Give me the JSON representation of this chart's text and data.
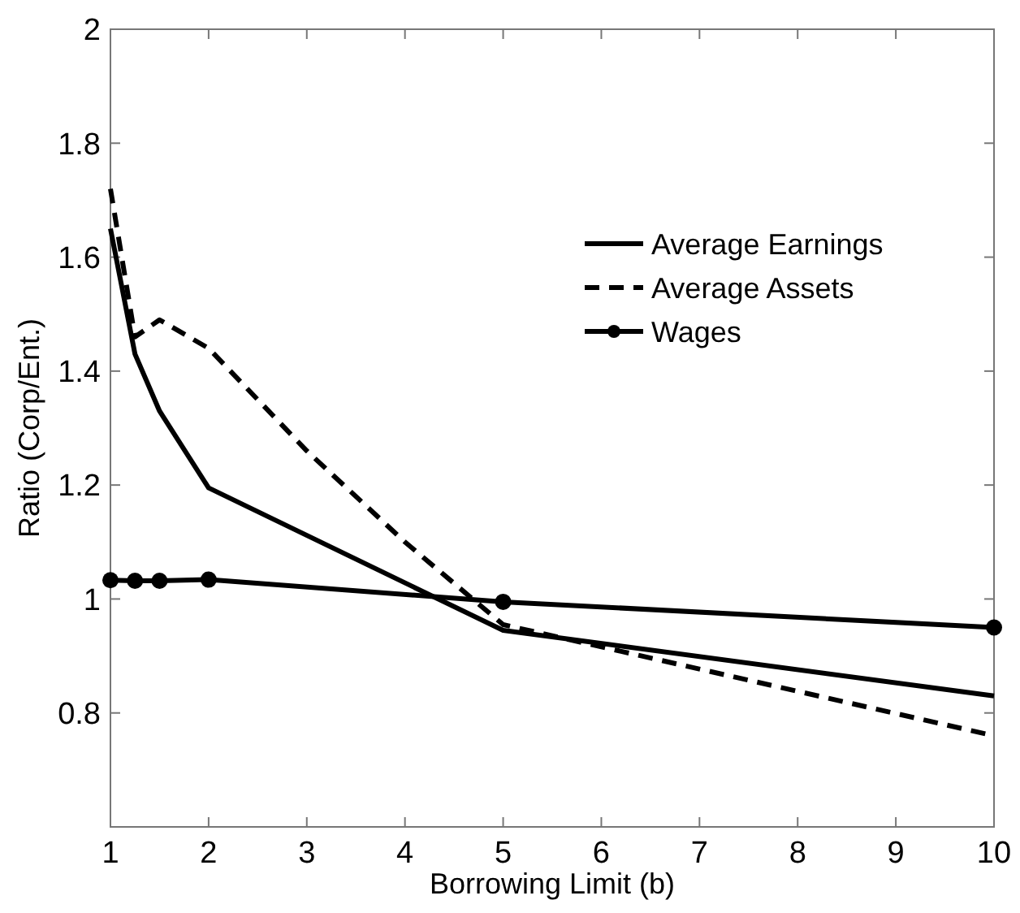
{
  "chart_data": {
    "type": "line",
    "xlabel": "Borrowing Limit (b)",
    "ylabel": "Ratio (Corp/Ent.)",
    "xlim": [
      1,
      10
    ],
    "xticks": [
      1,
      2,
      3,
      4,
      5,
      6,
      7,
      8,
      9,
      10
    ],
    "ylim": [
      0.6,
      2
    ],
    "yticks": [
      {
        "value": 0.6,
        "label": null
      },
      0.8,
      1,
      1.2,
      1.4,
      1.6,
      1.8,
      2
    ],
    "grid": false,
    "legend": "top right",
    "series": [
      {
        "name": "Average Earnings",
        "color": "#000000",
        "line_style": "solid",
        "marker": "none",
        "x": [
          1,
          1.25,
          1.5,
          2,
          5,
          10
        ],
        "values": [
          1.65,
          1.43,
          1.33,
          1.195,
          0.945,
          0.83
        ]
      },
      {
        "name": "Average Assets",
        "color": "#000000",
        "line_style": "dashed",
        "marker": "none",
        "x": [
          1,
          1.25,
          1.5,
          2,
          3,
          4,
          5,
          10
        ],
        "values": [
          1.72,
          1.46,
          1.49,
          1.44,
          1.26,
          1.1,
          0.955,
          0.76
        ]
      },
      {
        "name": "Wages",
        "color": "#000000",
        "line_style": "solid",
        "marker": "circle",
        "x": [
          1,
          1.25,
          1.5,
          2,
          5,
          10
        ],
        "values": [
          1.033,
          1.032,
          1.032,
          1.034,
          0.995,
          0.95
        ]
      }
    ]
  }
}
